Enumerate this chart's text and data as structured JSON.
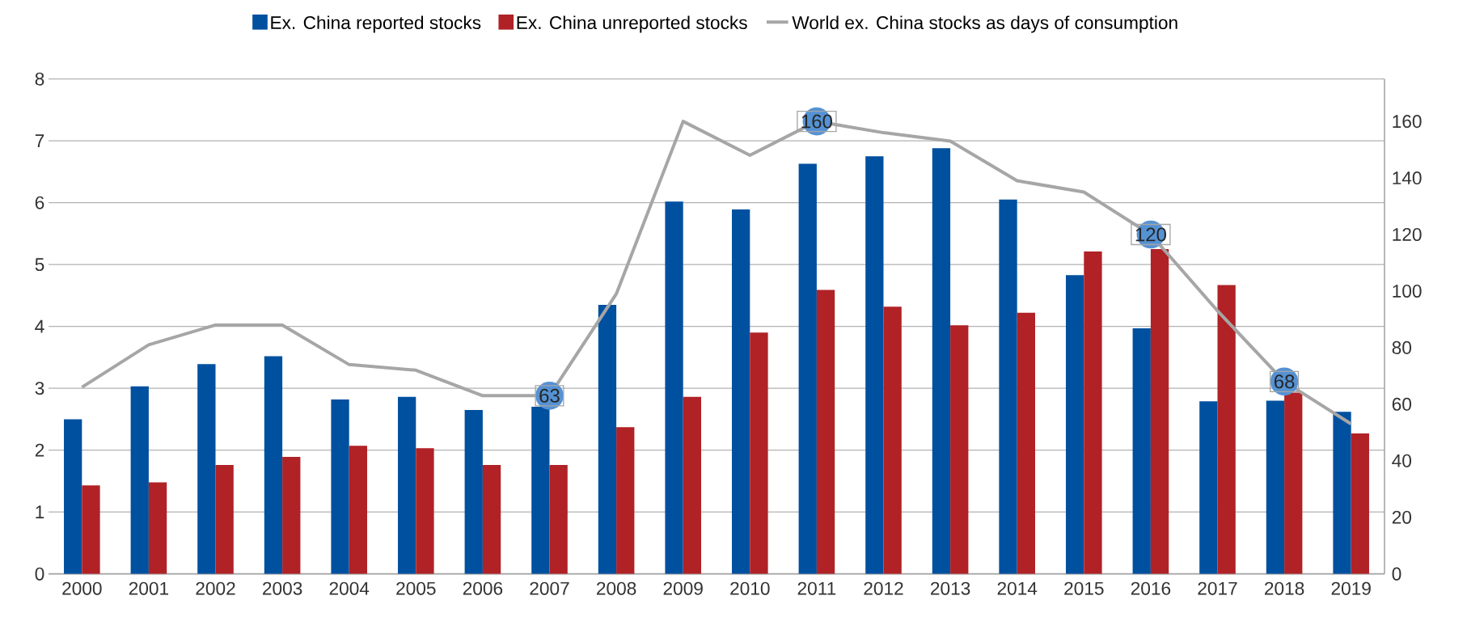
{
  "chart_data": {
    "type": "bar",
    "categories": [
      "2000",
      "2001",
      "2002",
      "2003",
      "2004",
      "2005",
      "2006",
      "2007",
      "2008",
      "2009",
      "2010",
      "2011",
      "2012",
      "2013",
      "2014",
      "2015",
      "2016",
      "2017",
      "2018",
      "2019"
    ],
    "series": [
      {
        "name": "Ex. China reported stocks",
        "color": "#0050a0",
        "values": [
          2.5,
          3.03,
          3.39,
          3.52,
          2.82,
          2.86,
          2.65,
          2.7,
          4.35,
          6.02,
          5.89,
          6.63,
          6.75,
          6.88,
          6.05,
          4.83,
          3.97,
          2.79,
          2.8,
          2.62
        ]
      },
      {
        "name": "Ex. China unreported stocks",
        "color": "#b02226",
        "values": [
          1.43,
          1.48,
          1.76,
          1.89,
          2.07,
          2.03,
          1.76,
          1.76,
          2.37,
          2.86,
          3.9,
          4.59,
          4.32,
          4.02,
          4.22,
          5.21,
          5.25,
          4.67,
          2.93,
          2.27
        ]
      },
      {
        "name": "World ex. China stocks as days of consumption",
        "type": "line",
        "axis": "y2",
        "color": "#a6a6a6",
        "values": [
          66,
          81,
          88,
          88,
          74,
          72,
          63,
          63,
          99,
          160,
          148,
          160,
          156,
          153,
          139,
          135,
          120,
          93,
          68,
          53
        ],
        "value_labels": [
          null,
          null,
          null,
          null,
          null,
          null,
          null,
          "63",
          null,
          null,
          null,
          "160",
          null,
          null,
          null,
          null,
          "120",
          null,
          "68",
          null
        ]
      }
    ],
    "ylim": [
      0,
      8
    ],
    "yticks": [
      0,
      1,
      2,
      3,
      4,
      5,
      6,
      7,
      8
    ],
    "y2lim": [
      0,
      175
    ],
    "y2ticks": [
      0,
      20,
      40,
      60,
      80,
      100,
      120,
      140,
      160
    ],
    "grid": "y",
    "legend": "top"
  }
}
